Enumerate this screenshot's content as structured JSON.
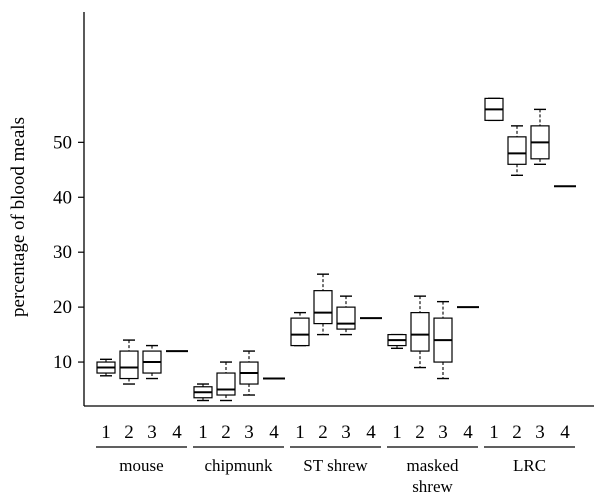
{
  "chart_data": {
    "type": "box",
    "ylabel": "percentage of blood meals",
    "yticks": [
      10,
      20,
      30,
      40,
      50
    ],
    "ylim": [
      2,
      73
    ],
    "groups": [
      {
        "name": "mouse",
        "boxes": [
          {
            "label": "1",
            "min": 7.5,
            "q1": 8,
            "median": 9,
            "q3": 10,
            "max": 10.5
          },
          {
            "label": "2",
            "min": 6,
            "q1": 7,
            "median": 9,
            "q3": 12,
            "max": 14
          },
          {
            "label": "3",
            "min": 7,
            "q1": 8,
            "median": 10,
            "q3": 12,
            "max": 13
          },
          {
            "label": "4",
            "value": 12
          }
        ]
      },
      {
        "name": "chipmunk",
        "boxes": [
          {
            "label": "1",
            "min": 3,
            "q1": 3.5,
            "median": 4.5,
            "q3": 5.5,
            "max": 6
          },
          {
            "label": "2",
            "min": 3,
            "q1": 4,
            "median": 5,
            "q3": 8,
            "max": 10
          },
          {
            "label": "3",
            "min": 4,
            "q1": 6,
            "median": 8,
            "q3": 10,
            "max": 12
          },
          {
            "label": "4",
            "value": 7
          }
        ]
      },
      {
        "name": "ST shrew",
        "boxes": [
          {
            "label": "1",
            "min": 13,
            "q1": 13,
            "median": 15,
            "q3": 18,
            "max": 19
          },
          {
            "label": "2",
            "min": 15,
            "q1": 17,
            "median": 19,
            "q3": 23,
            "max": 26
          },
          {
            "label": "3",
            "min": 15,
            "q1": 16,
            "median": 17,
            "q3": 20,
            "max": 22
          },
          {
            "label": "4",
            "value": 18
          }
        ]
      },
      {
        "name": "masked\nshrew",
        "boxes": [
          {
            "label": "1",
            "min": 12.5,
            "q1": 13,
            "median": 14,
            "q3": 15,
            "max": 15
          },
          {
            "label": "2",
            "min": 9,
            "q1": 12,
            "median": 15,
            "q3": 19,
            "max": 22
          },
          {
            "label": "3",
            "min": 7,
            "q1": 10,
            "median": 14,
            "q3": 18,
            "max": 21
          },
          {
            "label": "4",
            "value": 20
          }
        ]
      },
      {
        "name": "LRC",
        "boxes": [
          {
            "label": "1",
            "min": 54,
            "q1": 54,
            "median": 56,
            "q3": 58,
            "max": 58
          },
          {
            "label": "2",
            "min": 44,
            "q1": 46,
            "median": 48,
            "q3": 51,
            "max": 53
          },
          {
            "label": "3",
            "min": 46,
            "q1": 47,
            "median": 50,
            "q3": 53,
            "max": 56
          },
          {
            "label": "4",
            "value": 42
          }
        ]
      }
    ]
  }
}
